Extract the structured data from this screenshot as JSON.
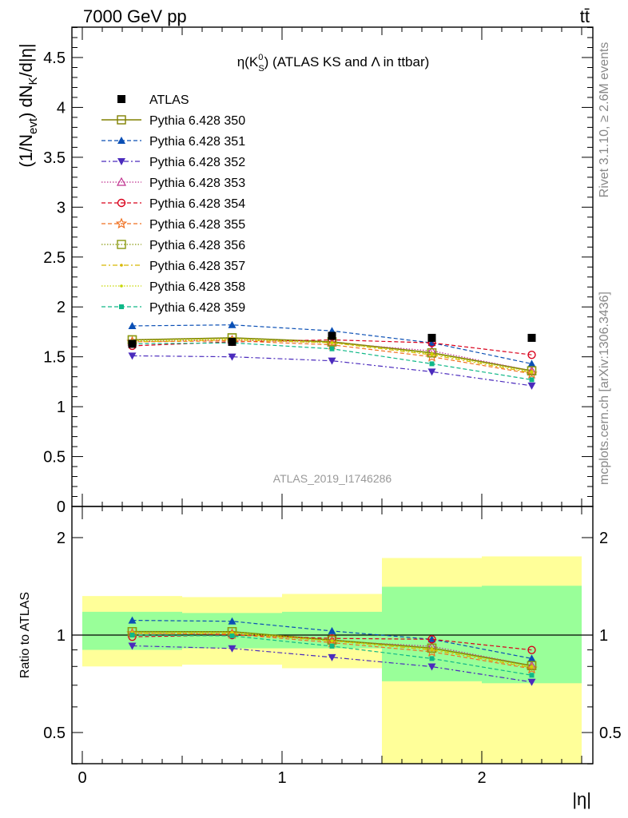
{
  "header": {
    "left": "7000 GeV pp",
    "right": "tt̄"
  },
  "side_labels": {
    "rivet": "Rivet 3.1.10, ≥ 2.6M events",
    "mcplots": "mcplots.cern.ch [arXiv:1306.3436]"
  },
  "chart_data": {
    "type": "line",
    "title": "η(K⁰S) (ATLAS KS and Λ in ttbar)",
    "watermark": "ATLAS_2019_I1746286",
    "xlabel": "|η|",
    "ylabel": "(1/N_evt) dN_K/d|η|",
    "ratio_ylabel": "Ratio to ATLAS",
    "xlim": [
      -0.05,
      2.55
    ],
    "ylim": [
      0,
      4.8
    ],
    "ratio_ylim": [
      0.33,
      2.3
    ],
    "xticks": [
      0,
      1,
      2
    ],
    "yticks": [
      0,
      0.5,
      1,
      1.5,
      2,
      2.5,
      3,
      3.5,
      4,
      4.5
    ],
    "ratio_yticks": [
      0.5,
      1,
      2
    ],
    "bins": [
      [
        0,
        0.5
      ],
      [
        0.5,
        1.0
      ],
      [
        1.0,
        1.5
      ],
      [
        1.5,
        2.0
      ],
      [
        2.0,
        2.5
      ]
    ],
    "x": [
      0.25,
      0.75,
      1.25,
      1.75,
      2.25
    ],
    "data": {
      "name": "ATLAS",
      "values": [
        1.63,
        1.65,
        1.71,
        1.69,
        1.69
      ],
      "color": "#000000",
      "marker": "square-filled"
    },
    "ratio_bands": {
      "stat_color": "#99ff99",
      "total_color": "#ffff99",
      "stat": [
        [
          0.9,
          1.18
        ],
        [
          0.91,
          1.17
        ],
        [
          0.91,
          1.18
        ],
        [
          0.72,
          1.41
        ],
        [
          0.71,
          1.42
        ]
      ],
      "total": [
        [
          0.8,
          1.32
        ],
        [
          0.81,
          1.31
        ],
        [
          0.79,
          1.34
        ],
        [
          0.33,
          1.73
        ],
        [
          0.33,
          1.75
        ]
      ]
    },
    "series": [
      {
        "name": "Pythia 6.428 350",
        "color": "#808000",
        "dash": "",
        "marker": "square-open",
        "values": [
          1.67,
          1.69,
          1.65,
          1.54,
          1.36
        ]
      },
      {
        "name": "Pythia 6.428 351",
        "color": "#0a4fb5",
        "dash": "5,3",
        "marker": "triangle-up-filled",
        "values": [
          1.81,
          1.82,
          1.76,
          1.64,
          1.43
        ]
      },
      {
        "name": "Pythia 6.428 352",
        "color": "#4b2bbd",
        "dash": "6,3,2,3",
        "marker": "triangle-down-filled",
        "values": [
          1.51,
          1.5,
          1.46,
          1.35,
          1.21
        ]
      },
      {
        "name": "Pythia 6.428 353",
        "color": "#c0328f",
        "dash": "1.5,2",
        "marker": "triangle-up-open",
        "values": [
          1.65,
          1.67,
          1.64,
          1.56,
          1.36
        ]
      },
      {
        "name": "Pythia 6.428 354",
        "color": "#d9001b",
        "dash": "5,3",
        "marker": "circle-open",
        "values": [
          1.61,
          1.65,
          1.67,
          1.64,
          1.52
        ]
      },
      {
        "name": "Pythia 6.428 355",
        "color": "#f07020",
        "dash": "5,3",
        "marker": "star-open",
        "values": [
          1.65,
          1.66,
          1.62,
          1.5,
          1.33
        ]
      },
      {
        "name": "Pythia 6.428 356",
        "color": "#8a9a10",
        "dash": "1.5,2",
        "marker": "square-open",
        "values": [
          1.67,
          1.69,
          1.65,
          1.54,
          1.36
        ]
      },
      {
        "name": "Pythia 6.428 357",
        "color": "#d8b800",
        "dash": "6,3,2,3",
        "marker": "dot",
        "values": [
          1.65,
          1.67,
          1.64,
          1.52,
          1.34
        ]
      },
      {
        "name": "Pythia 6.428 358",
        "color": "#c8d800",
        "dash": "1.5,2",
        "marker": "dot",
        "values": [
          1.66,
          1.68,
          1.64,
          1.53,
          1.35
        ]
      },
      {
        "name": "Pythia 6.428 359",
        "color": "#10b888",
        "dash": "5,3",
        "marker": "square-small-filled",
        "values": [
          1.63,
          1.64,
          1.58,
          1.43,
          1.27
        ]
      }
    ]
  }
}
